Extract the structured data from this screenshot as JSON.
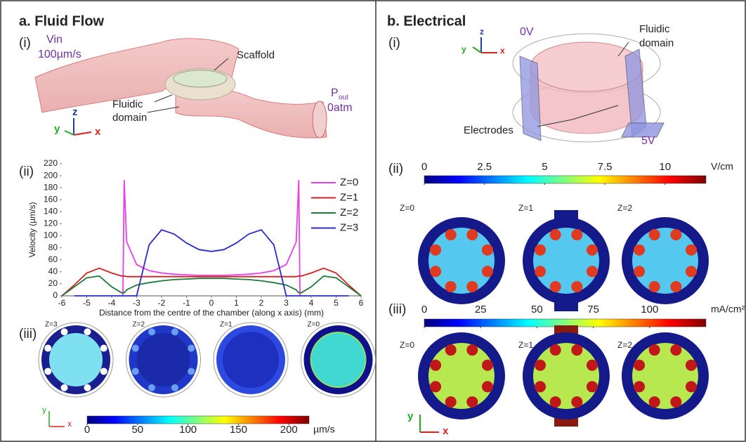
{
  "panel_a": {
    "title": "a. Fluid Flow",
    "i": {
      "label": "(i)",
      "inlet": "Vin",
      "inlet_velocity": "100µm/s",
      "scaffold": "Scaffold",
      "fluidic_domain": [
        "Fluidic",
        "domain"
      ],
      "outlet": "P",
      "outlet_sub": "out",
      "outlet_pressure": "0atm",
      "axes": [
        "z",
        "y",
        "x"
      ]
    },
    "ii": {
      "label": "(ii)"
    },
    "iii": {
      "label": "(iii)",
      "slices": [
        "Z=3",
        "Z=2",
        "Z=1",
        "Z=0"
      ],
      "axes": [
        "y",
        "x"
      ],
      "colorbar": {
        "lim": [
          0,
          220
        ],
        "ticks": [
          0,
          50,
          100,
          150,
          200
        ],
        "unit": "µm/s"
      }
    }
  },
  "panel_b": {
    "title": "b. Electrical",
    "i": {
      "label": "(i)",
      "top_voltage": "0V",
      "fluidic_domain": [
        "Fluidic",
        "domain"
      ],
      "electrodes": "Electrodes",
      "bottom_voltage": "5V",
      "axes": [
        "z",
        "y",
        "x"
      ]
    },
    "ii": {
      "label": "(ii)",
      "slices": [
        "Z=0",
        "Z=1",
        "Z=2"
      ],
      "colorbar": {
        "lim": [
          0,
          11.7
        ],
        "ticks": [
          0,
          2.5,
          5,
          7.5,
          10
        ],
        "unit": "V/cm"
      }
    },
    "iii": {
      "label": "(iii)",
      "slices": [
        "Z=0",
        "Z=1",
        "Z=2"
      ],
      "axes": [
        "y",
        "x"
      ],
      "colorbar": {
        "lim": [
          0,
          125
        ],
        "ticks": [
          0,
          25,
          50,
          75,
          100
        ],
        "unit": "mA/cm²"
      }
    }
  },
  "chart_data": {
    "type": "line",
    "xlabel": "Distance from the centre of the chamber (along x axis) (mm)",
    "ylabel": "Velocity (µm/s)",
    "x": [
      -6,
      -5.5,
      -5,
      -4.5,
      -4,
      -3.6,
      -3.55,
      -3.5,
      -3.4,
      -3,
      -2.5,
      -2,
      -1.5,
      -1,
      -0.5,
      0,
      0.5,
      1,
      1.5,
      2,
      2.5,
      3,
      3.4,
      3.5,
      3.55,
      3.6,
      4,
      4.5,
      5,
      5.5,
      6
    ],
    "series": [
      {
        "name": "Z=0",
        "color": "#e83ee8",
        "values": [
          null,
          null,
          null,
          null,
          null,
          null,
          0,
          193,
          90,
          52,
          42,
          38,
          36,
          35,
          34,
          34,
          34,
          35,
          36,
          38,
          42,
          52,
          90,
          193,
          0,
          null,
          null,
          null,
          null,
          null,
          null
        ]
      },
      {
        "name": "Z=1",
        "color": "#d42020",
        "values": [
          0,
          18,
          38,
          46,
          38,
          33,
          33,
          33,
          32,
          32,
          32,
          32,
          32,
          32,
          32,
          32,
          32,
          32,
          32,
          32,
          32,
          32,
          32,
          33,
          33,
          33,
          38,
          46,
          38,
          18,
          0
        ]
      },
      {
        "name": "Z=2",
        "color": "#1e7a3a",
        "values": [
          0,
          15,
          30,
          33,
          15,
          5,
          5,
          5,
          10,
          18,
          22,
          25,
          27,
          28,
          29,
          29,
          29,
          28,
          27,
          25,
          22,
          18,
          10,
          5,
          5,
          5,
          15,
          33,
          30,
          15,
          0
        ]
      },
      {
        "name": "Z=3",
        "color": "#2a2ad0",
        "values": [
          null,
          0,
          0,
          0,
          0,
          0,
          0,
          0,
          0,
          0,
          85,
          110,
          103,
          88,
          77,
          74,
          77,
          88,
          103,
          110,
          85,
          0,
          0,
          0,
          0,
          0,
          0,
          0,
          0,
          0,
          null
        ]
      }
    ],
    "xlim": [
      -6,
      6
    ],
    "xticks": [
      -6,
      -5,
      -4,
      -3,
      -2,
      -1,
      0,
      1,
      2,
      3,
      4,
      5,
      6
    ],
    "ylim": [
      0,
      220
    ],
    "yticks": [
      0,
      20,
      40,
      60,
      80,
      100,
      120,
      140,
      160,
      180,
      200,
      220
    ],
    "grid": false
  }
}
